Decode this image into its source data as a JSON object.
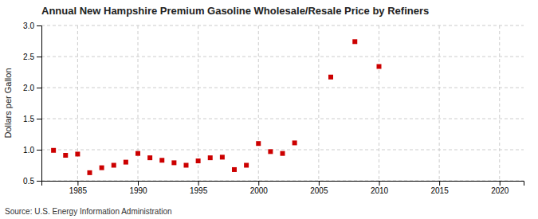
{
  "chart_data": {
    "type": "scatter",
    "title": "Annual New Hampshire Premium Gasoline Wholesale/Resale Price by Refiners",
    "ylabel": "Dollars per Gallon",
    "source": "Source: U.S. Energy Information Administration",
    "x": [
      1983,
      1984,
      1985,
      1986,
      1987,
      1988,
      1989,
      1990,
      1991,
      1992,
      1993,
      1994,
      1995,
      1996,
      1997,
      1998,
      1999,
      2000,
      2001,
      2002,
      2003,
      2006,
      2008,
      2010
    ],
    "values": [
      0.99,
      0.91,
      0.93,
      0.63,
      0.71,
      0.75,
      0.8,
      0.94,
      0.87,
      0.83,
      0.79,
      0.75,
      0.82,
      0.87,
      0.88,
      0.68,
      0.75,
      1.1,
      0.97,
      0.94,
      1.11,
      2.17,
      2.74,
      2.34
    ],
    "color": "#cc0000",
    "marker": "square",
    "grid": true,
    "xlim": [
      1982,
      2022
    ],
    "ylim": [
      0.5,
      3.0
    ],
    "xticks": [
      1985,
      1990,
      1995,
      2000,
      2005,
      2010,
      2015,
      2020
    ],
    "yticks": [
      0.5,
      {
        "value": 1,
        "label": "1.0"
      },
      1.5,
      {
        "value": 2,
        "label": "2.0"
      },
      2.5,
      {
        "value": 3,
        "label": "3.0"
      }
    ]
  }
}
